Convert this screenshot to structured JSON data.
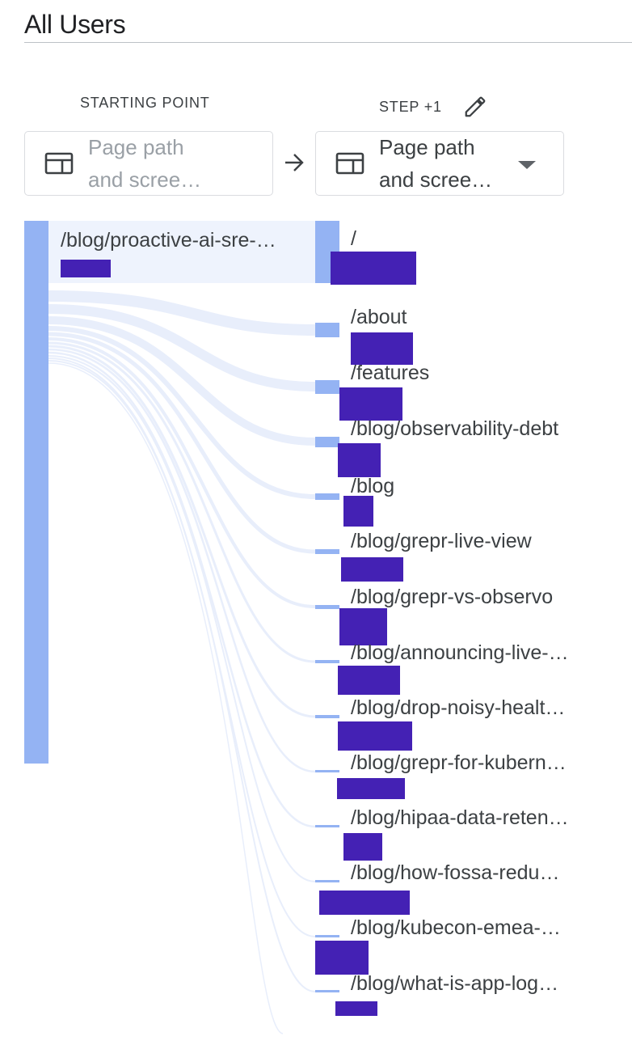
{
  "segment": {
    "title": "All Users"
  },
  "columns": {
    "starting_point": "STARTING POINT",
    "step": "STEP +1"
  },
  "dimension": {
    "starting_placeholder": "Page path\nand scree…",
    "step_value": "Page path\nand scree…"
  },
  "icons": {
    "edit": "pencil-icon",
    "page": "web-page-icon",
    "arrow": "arrow-right-icon",
    "caret": "dropdown-caret-icon"
  },
  "colors": {
    "node_bar": "#94b3f3",
    "start_highlight": "#eef3fd",
    "redaction": "#4421b4",
    "flow": "#e8eefb"
  },
  "starting_node": {
    "label": "/blog/proactive-ai-sre-…"
  },
  "step_nodes": [
    {
      "label": "/"
    },
    {
      "label": "/about"
    },
    {
      "label": "/features"
    },
    {
      "label": "/blog/observability-debt"
    },
    {
      "label": "/blog"
    },
    {
      "label": "/blog/grepr-live-view"
    },
    {
      "label": "/blog/grepr-vs-observo"
    },
    {
      "label": "/blog/announcing-live-…"
    },
    {
      "label": "/blog/drop-noisy-healt…"
    },
    {
      "label": "/blog/grepr-for-kubern…"
    },
    {
      "label": "/blog/hipaa-data-reten…"
    },
    {
      "label": "/blog/how-fossa-redu…"
    },
    {
      "label": "/blog/kubecon-emea-…"
    },
    {
      "label": "/blog/what-is-app-log…"
    }
  ]
}
